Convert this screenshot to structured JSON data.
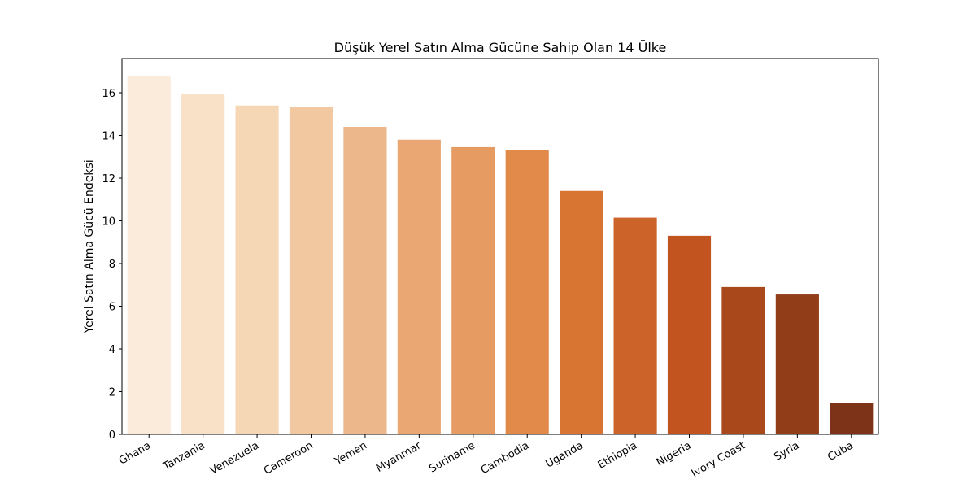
{
  "chart_data": {
    "type": "bar",
    "title": "Düşük Yerel Satın Alma Gücüne Sahip Olan 14 Ülke",
    "xlabel": "",
    "ylabel": "Yerel Satın Alma Gücü Endeksi",
    "ylim": [
      0,
      17.6
    ],
    "yticks": [
      0,
      2,
      4,
      6,
      8,
      10,
      12,
      14,
      16
    ],
    "grid": false,
    "categories": [
      "Ghana",
      "Tanzania",
      "Venezuela",
      "Cameroon",
      "Yemen",
      "Myanmar",
      "Suriname",
      "Cambodia",
      "Uganda",
      "Ethiopia",
      "Nigeria",
      "Ivory Coast",
      "Syria",
      "Cuba"
    ],
    "values": [
      16.8,
      15.95,
      15.4,
      15.35,
      14.4,
      13.8,
      13.45,
      13.3,
      11.4,
      10.15,
      9.3,
      6.9,
      6.55,
      1.45
    ],
    "colors": [
      "#fbebdb",
      "#f9e1c8",
      "#f5d7b5",
      "#f2c8a0",
      "#ecb78a",
      "#eaa673",
      "#e59b62",
      "#e28a4a",
      "#d87533",
      "#cc6328",
      "#c1541f",
      "#a9481a",
      "#913d18",
      "#7c3318"
    ]
  }
}
